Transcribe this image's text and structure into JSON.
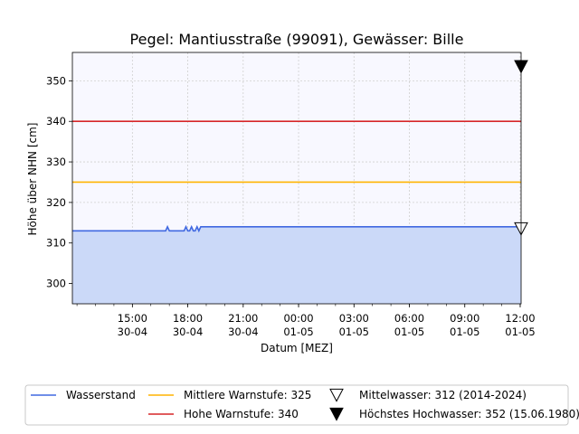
{
  "chart_data": {
    "type": "line",
    "title": "Pegel:  Mantiusstraße (99091), Gewässer:  Bille",
    "xlabel": "Datum [MEZ]",
    "ylabel": "Höhe über NHN [cm]",
    "ylim": [
      295,
      357
    ],
    "xlim_hours": [
      11.75,
      36.05
    ],
    "yticks": [
      300,
      310,
      320,
      330,
      340,
      350
    ],
    "xticks": [
      {
        "h": 15,
        "line1": "15:00",
        "line2": "30-04"
      },
      {
        "h": 18,
        "line1": "18:00",
        "line2": "30-04"
      },
      {
        "h": 21,
        "line1": "21:00",
        "line2": "30-04"
      },
      {
        "h": 24,
        "line1": "00:00",
        "line2": "01-05"
      },
      {
        "h": 27,
        "line1": "03:00",
        "line2": "01-05"
      },
      {
        "h": 30,
        "line1": "06:00",
        "line2": "01-05"
      },
      {
        "h": 33,
        "line1": "09:00",
        "line2": "01-05"
      },
      {
        "h": 36,
        "line1": "12:00",
        "line2": "01-05"
      }
    ],
    "grid": true,
    "series": [
      {
        "name": "Wasserstand",
        "color": "#4169e1",
        "fill": "#cbd9f8",
        "points": [
          [
            11.75,
            313
          ],
          [
            16.8,
            313
          ],
          [
            16.9,
            314
          ],
          [
            17.0,
            313
          ],
          [
            17.8,
            313
          ],
          [
            17.9,
            314
          ],
          [
            18.0,
            313
          ],
          [
            18.1,
            313
          ],
          [
            18.2,
            314
          ],
          [
            18.3,
            313
          ],
          [
            18.4,
            313
          ],
          [
            18.5,
            314
          ],
          [
            18.6,
            313
          ],
          [
            18.7,
            314
          ],
          [
            36.05,
            314
          ]
        ]
      },
      {
        "name": "Mittlere Warnstufe: 325",
        "color": "#ffb400",
        "value": 325
      },
      {
        "name": "Hohe Warnstufe: 340",
        "color": "#d62728",
        "value": 340
      }
    ],
    "markers": [
      {
        "name": "Mittelwasser: 312 (2014-2024)",
        "y": 313.5,
        "style": "open-triangle-down"
      },
      {
        "name": "Höchstes Hochwasser: 352 (15.06.1980)",
        "y": 353.5,
        "style": "filled-triangle-down"
      }
    ],
    "legend": "bottom",
    "background": "#f8f8ff"
  }
}
